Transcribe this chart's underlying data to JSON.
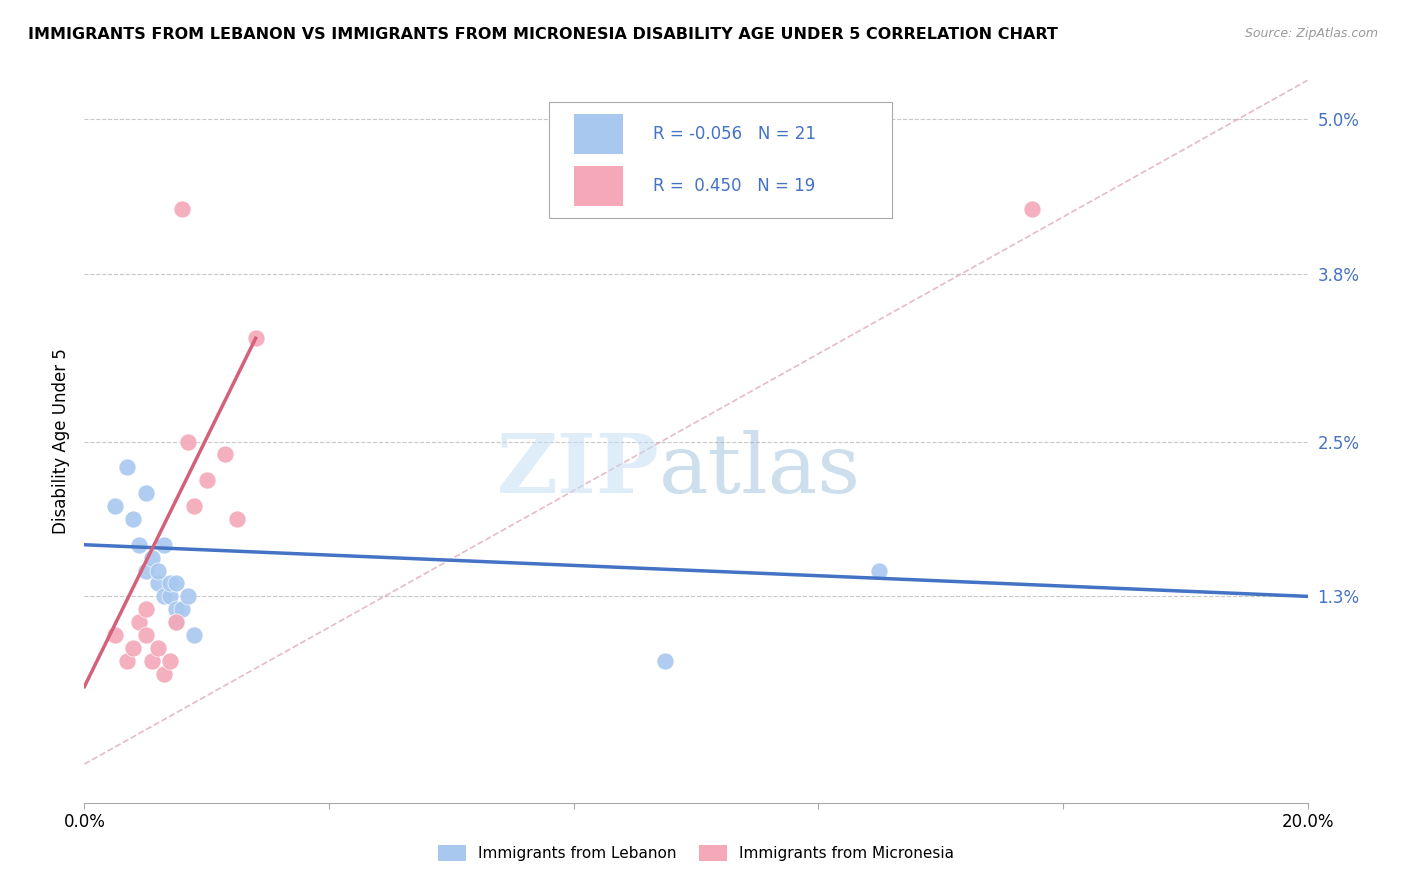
{
  "title": "IMMIGRANTS FROM LEBANON VS IMMIGRANTS FROM MICRONESIA DISABILITY AGE UNDER 5 CORRELATION CHART",
  "source": "Source: ZipAtlas.com",
  "ylabel": "Disability Age Under 5",
  "xlim": [
    0.0,
    0.2
  ],
  "ylim": [
    -0.003,
    0.053
  ],
  "yticks": [
    0.013,
    0.025,
    0.038,
    0.05
  ],
  "ytick_labels": [
    "1.3%",
    "2.5%",
    "3.8%",
    "5.0%"
  ],
  "xticks": [
    0.0,
    0.04,
    0.08,
    0.12,
    0.16,
    0.2
  ],
  "xtick_labels": [
    "0.0%",
    "",
    "",
    "",
    "",
    "20.0%"
  ],
  "legend_r1_text": "R = -0.056   N = 21",
  "legend_r2_text": "R =  0.450   N = 19",
  "watermark_zip": "ZIP",
  "watermark_atlas": "atlas",
  "blue_color": "#a8c8f0",
  "pink_color": "#f4a8b8",
  "blue_line_color": "#4472c4",
  "pink_line_color": "#d4607a",
  "legend_text_color": "#4472c4",
  "blue_scatter": [
    [
      0.005,
      0.02
    ],
    [
      0.007,
      0.023
    ],
    [
      0.008,
      0.019
    ],
    [
      0.009,
      0.017
    ],
    [
      0.01,
      0.021
    ],
    [
      0.01,
      0.015
    ],
    [
      0.011,
      0.016
    ],
    [
      0.012,
      0.014
    ],
    [
      0.012,
      0.015
    ],
    [
      0.013,
      0.017
    ],
    [
      0.013,
      0.013
    ],
    [
      0.014,
      0.013
    ],
    [
      0.014,
      0.014
    ],
    [
      0.015,
      0.014
    ],
    [
      0.015,
      0.012
    ],
    [
      0.015,
      0.011
    ],
    [
      0.016,
      0.012
    ],
    [
      0.017,
      0.013
    ],
    [
      0.018,
      0.01
    ],
    [
      0.095,
      0.008
    ],
    [
      0.13,
      0.015
    ]
  ],
  "pink_scatter": [
    [
      0.005,
      0.01
    ],
    [
      0.007,
      0.008
    ],
    [
      0.008,
      0.009
    ],
    [
      0.009,
      0.011
    ],
    [
      0.01,
      0.012
    ],
    [
      0.01,
      0.01
    ],
    [
      0.011,
      0.008
    ],
    [
      0.012,
      0.009
    ],
    [
      0.013,
      0.007
    ],
    [
      0.014,
      0.008
    ],
    [
      0.015,
      0.011
    ],
    [
      0.016,
      0.043
    ],
    [
      0.017,
      0.025
    ],
    [
      0.018,
      0.02
    ],
    [
      0.02,
      0.022
    ],
    [
      0.023,
      0.024
    ],
    [
      0.025,
      0.019
    ],
    [
      0.028,
      0.033
    ],
    [
      0.155,
      0.043
    ]
  ],
  "blue_trendline_x": [
    0.0,
    0.2
  ],
  "blue_trendline_y": [
    0.017,
    0.013
  ],
  "pink_trendline_x": [
    0.0,
    0.028
  ],
  "pink_trendline_y": [
    0.006,
    0.033
  ],
  "diagonal_line": [
    [
      0.0,
      0.0
    ],
    [
      0.2,
      0.053
    ]
  ],
  "background_color": "#ffffff",
  "grid_color": "#c8c8c8"
}
